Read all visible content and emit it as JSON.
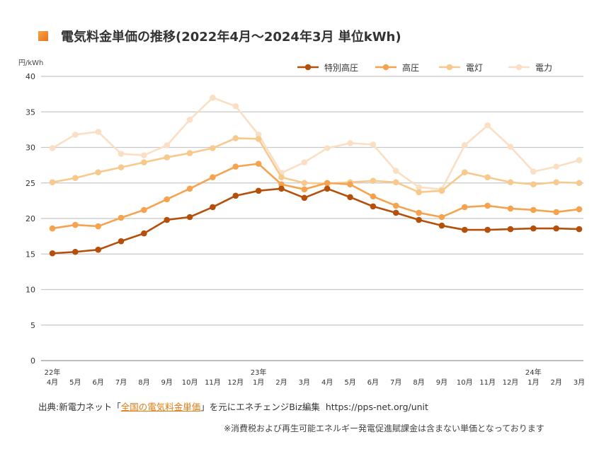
{
  "title": "電気料金単価の推移(2022年4月～2024年3月 単位kWh)",
  "source": {
    "prefix": "出典:新電力ネット「",
    "link_text": "全国の電気料金単価",
    "suffix": "」を元にエネチェンジBiz編集",
    "url": "https://pps-net.org/unit"
  },
  "note": "※消費税および再生可能エネルギー発電促進賦課金は含まない単価となっております",
  "chart_data": {
    "type": "line",
    "title": "電気料金単価の推移(2022年4月～2024年3月 単位kWh)",
    "ylabel": "円/kWh",
    "xlabel": "",
    "ylim": [
      0,
      40
    ],
    "yticks": [
      0,
      5,
      10,
      15,
      20,
      25,
      30,
      35,
      40
    ],
    "grid": true,
    "legend_position": "top-right",
    "categories": [
      "4月",
      "5月",
      "6月",
      "7月",
      "8月",
      "9月",
      "10月",
      "11月",
      "12月",
      "1月",
      "2月",
      "3月",
      "4月",
      "5月",
      "6月",
      "7月",
      "8月",
      "9月",
      "10月",
      "11月",
      "12月",
      "1月",
      "2月",
      "3月"
    ],
    "year_labels": [
      {
        "index": 0,
        "label": "22年"
      },
      {
        "index": 9,
        "label": "23年"
      },
      {
        "index": 21,
        "label": "24年"
      }
    ],
    "series": [
      {
        "name": "特別高圧",
        "color": "#b5500b",
        "values": [
          15.1,
          15.3,
          15.6,
          16.8,
          17.9,
          19.8,
          20.2,
          21.6,
          23.2,
          23.9,
          24.2,
          22.9,
          24.2,
          23.0,
          21.7,
          20.8,
          19.8,
          19.0,
          18.4,
          18.4,
          18.5,
          18.6,
          18.6,
          18.5
        ]
      },
      {
        "name": "高圧",
        "color": "#f5a34f",
        "values": [
          18.6,
          19.1,
          18.9,
          20.1,
          21.2,
          22.7,
          24.2,
          25.8,
          27.3,
          27.7,
          24.8,
          24.1,
          25.0,
          24.8,
          23.1,
          21.8,
          20.8,
          20.2,
          21.6,
          21.8,
          21.4,
          21.2,
          20.9,
          21.3
        ]
      },
      {
        "name": "電灯",
        "color": "#f8c98c",
        "values": [
          25.1,
          25.7,
          26.5,
          27.2,
          27.9,
          28.6,
          29.2,
          29.9,
          31.3,
          31.2,
          25.8,
          25.0,
          24.9,
          25.1,
          25.3,
          25.1,
          23.7,
          23.9,
          26.5,
          25.8,
          25.1,
          24.8,
          25.1,
          25.0
        ]
      },
      {
        "name": "電力",
        "color": "#fbdfc4",
        "values": [
          29.9,
          31.8,
          32.2,
          29.1,
          28.9,
          30.3,
          33.9,
          37.0,
          35.8,
          31.8,
          26.4,
          27.9,
          29.9,
          30.6,
          30.4,
          26.7,
          24.4,
          24.1,
          30.3,
          33.1,
          30.1,
          26.6,
          27.3,
          28.2
        ]
      }
    ]
  }
}
